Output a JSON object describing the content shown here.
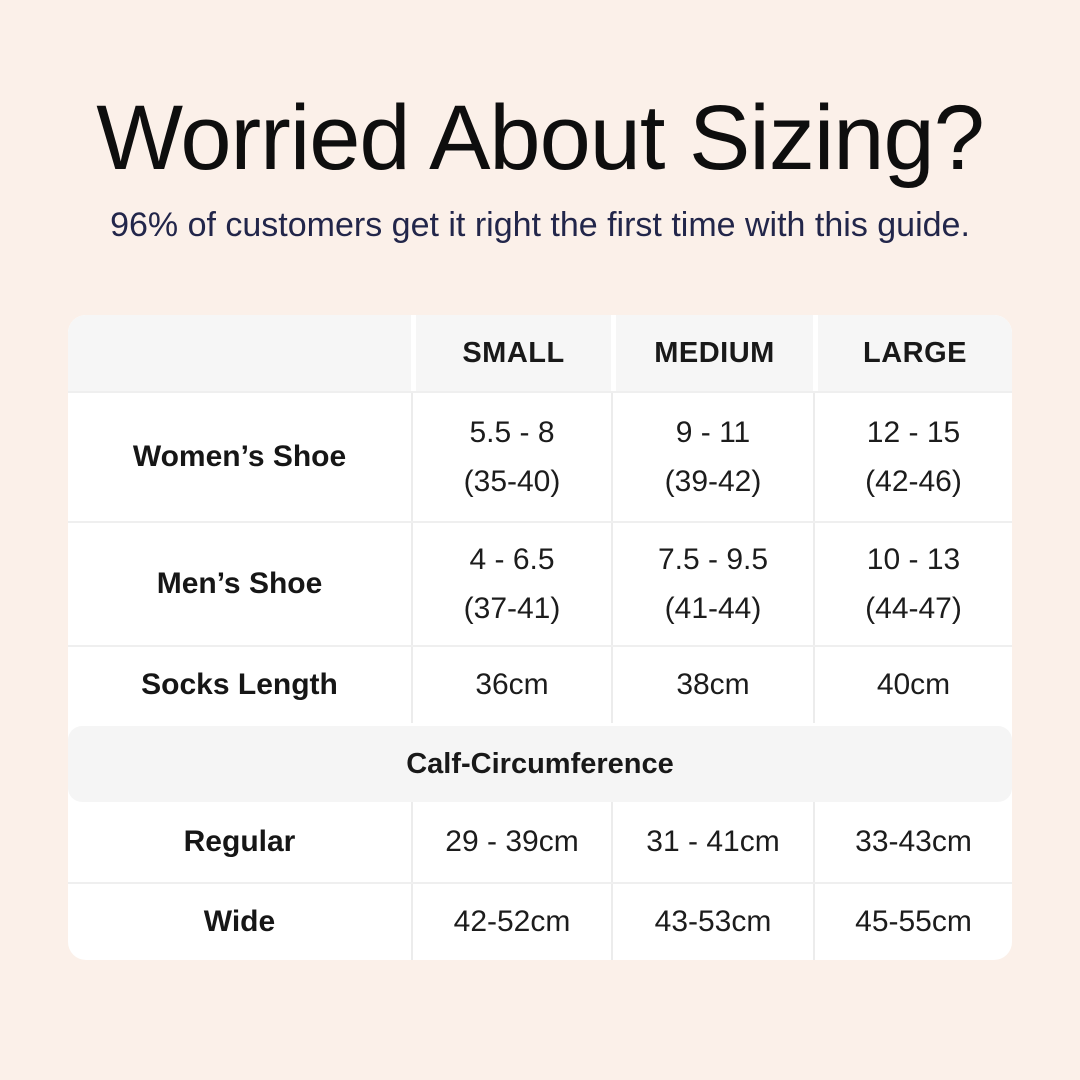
{
  "page": {
    "title": "Worried About Sizing?",
    "subtitle": "96% of customers get it right the first time with this guide."
  },
  "colors": {
    "background": "#fbf0e9",
    "title_text": "#0e0e0e",
    "subtitle_text": "#22264a",
    "table_background": "#ffffff",
    "header_band": "#f6f6f6",
    "section_band": "#f5f5f5",
    "divider": "#ececec",
    "table_text": "#1a1a1a"
  },
  "chart_data": {
    "type": "table",
    "title": "Worried About Sizing?",
    "subtitle": "96% of customers get it right the first time with this guide.",
    "columns": [
      "",
      "SMALL",
      "MEDIUM",
      "LARGE"
    ],
    "rows": [
      {
        "label": "Women’s Shoe",
        "cells": [
          {
            "main": "5.5 - 8",
            "sub": "(35-40)"
          },
          {
            "main": "9 - 11",
            "sub": "(39-42)"
          },
          {
            "main": "12 - 15",
            "sub": "(42-46)"
          }
        ]
      },
      {
        "label": "Men’s Shoe",
        "cells": [
          {
            "main": "4 - 6.5",
            "sub": "(37-41)"
          },
          {
            "main": "7.5 - 9.5",
            "sub": "(41-44)"
          },
          {
            "main": "10 - 13",
            "sub": "(44-47)"
          }
        ]
      },
      {
        "label": "Socks Length",
        "cells": [
          {
            "main": "36cm"
          },
          {
            "main": "38cm"
          },
          {
            "main": "40cm"
          }
        ]
      }
    ],
    "section_label": "Calf-Circumference",
    "section_rows": [
      {
        "label": "Regular",
        "cells": [
          {
            "main": "29 - 39cm"
          },
          {
            "main": "31 - 41cm"
          },
          {
            "main": "33-43cm"
          }
        ]
      },
      {
        "label": "Wide",
        "cells": [
          {
            "main": "42-52cm"
          },
          {
            "main": "43-53cm"
          },
          {
            "main": "45-55cm"
          }
        ]
      }
    ],
    "layout_hints": {
      "header_row_shaded": true,
      "section_band_shaded": true,
      "label_column_first": true
    }
  }
}
